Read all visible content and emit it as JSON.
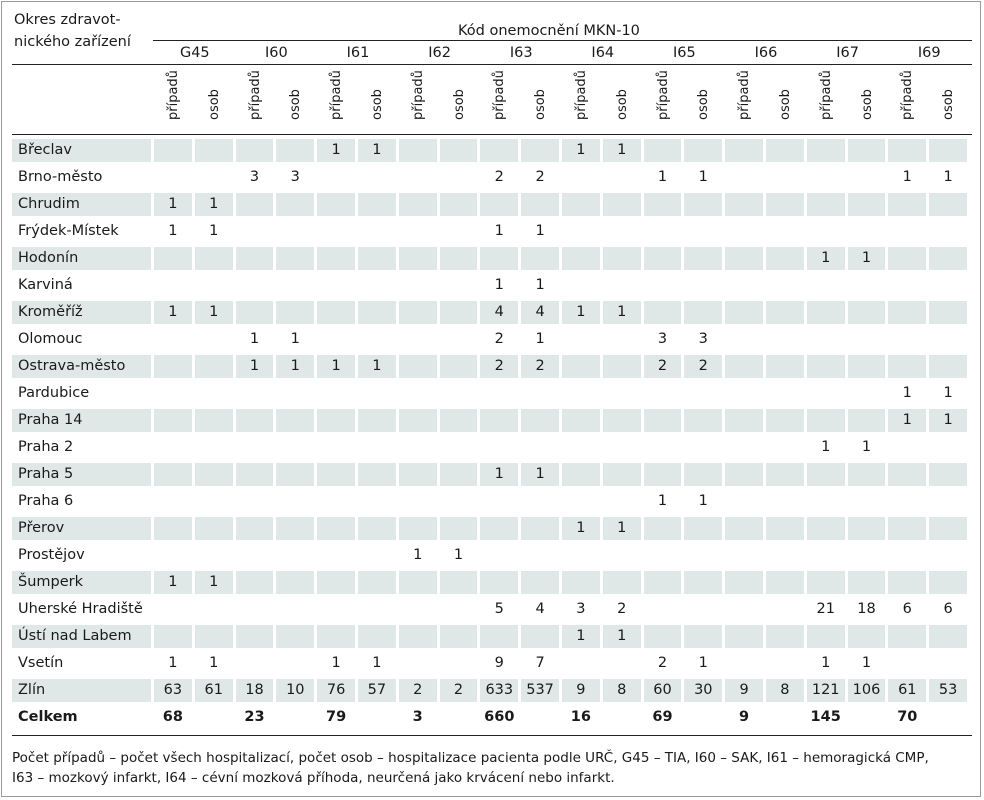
{
  "header": {
    "row_label_line1": "Okres zdravot-",
    "row_label_line2": "nického zařízení",
    "group_title": "Kód onemocnění MKN-10",
    "codes": [
      "G45",
      "I60",
      "I61",
      "I62",
      "I63",
      "I64",
      "I65",
      "I66",
      "I67",
      "I69"
    ],
    "sub_cases": "případů",
    "sub_persons": "osob"
  },
  "rows": [
    {
      "name": "Břeclav",
      "cells": [
        "",
        "",
        "",
        "",
        "1",
        "1",
        "",
        "",
        "",
        "",
        "1",
        "1",
        "",
        "",
        "",
        "",
        "",
        "",
        "",
        ""
      ]
    },
    {
      "name": "Brno-město",
      "cells": [
        "",
        "",
        "3",
        "3",
        "",
        "",
        "",
        "",
        "2",
        "2",
        "",
        "",
        "1",
        "1",
        "",
        "",
        "",
        "",
        "1",
        "1"
      ]
    },
    {
      "name": "Chrudim",
      "cells": [
        "1",
        "1",
        "",
        "",
        "",
        "",
        "",
        "",
        "",
        "",
        "",
        "",
        "",
        "",
        "",
        "",
        "",
        "",
        "",
        ""
      ]
    },
    {
      "name": "Frýdek-Místek",
      "cells": [
        "1",
        "1",
        "",
        "",
        "",
        "",
        "",
        "",
        "1",
        "1",
        "",
        "",
        "",
        "",
        "",
        "",
        "",
        "",
        "",
        ""
      ]
    },
    {
      "name": "Hodonín",
      "cells": [
        "",
        "",
        "",
        "",
        "",
        "",
        "",
        "",
        "",
        "",
        "",
        "",
        "",
        "",
        "",
        "",
        "1",
        "1",
        "",
        ""
      ]
    },
    {
      "name": "Karviná",
      "cells": [
        "",
        "",
        "",
        "",
        "",
        "",
        "",
        "",
        "1",
        "1",
        "",
        "",
        "",
        "",
        "",
        "",
        "",
        "",
        "",
        ""
      ]
    },
    {
      "name": "Kroměříž",
      "cells": [
        "1",
        "1",
        "",
        "",
        "",
        "",
        "",
        "",
        "4",
        "4",
        "1",
        "1",
        "",
        "",
        "",
        "",
        "",
        "",
        "",
        ""
      ]
    },
    {
      "name": "Olomouc",
      "cells": [
        "",
        "",
        "1",
        "1",
        "",
        "",
        "",
        "",
        "2",
        "1",
        "",
        "",
        "3",
        "3",
        "",
        "",
        "",
        "",
        "",
        ""
      ]
    },
    {
      "name": "Ostrava-město",
      "cells": [
        "",
        "",
        "1",
        "1",
        "1",
        "1",
        "",
        "",
        "2",
        "2",
        "",
        "",
        "2",
        "2",
        "",
        "",
        "",
        "",
        "",
        ""
      ]
    },
    {
      "name": "Pardubice",
      "cells": [
        "",
        "",
        "",
        "",
        "",
        "",
        "",
        "",
        "",
        "",
        "",
        "",
        "",
        "",
        "",
        "",
        "",
        "",
        "1",
        "1"
      ]
    },
    {
      "name": "Praha 14",
      "cells": [
        "",
        "",
        "",
        "",
        "",
        "",
        "",
        "",
        "",
        "",
        "",
        "",
        "",
        "",
        "",
        "",
        "",
        "",
        "1",
        "1"
      ]
    },
    {
      "name": "Praha 2",
      "cells": [
        "",
        "",
        "",
        "",
        "",
        "",
        "",
        "",
        "",
        "",
        "",
        "",
        "",
        "",
        "",
        "",
        "1",
        "1",
        "",
        ""
      ]
    },
    {
      "name": "Praha 5",
      "cells": [
        "",
        "",
        "",
        "",
        "",
        "",
        "",
        "",
        "1",
        "1",
        "",
        "",
        "",
        "",
        "",
        "",
        "",
        "",
        "",
        ""
      ]
    },
    {
      "name": "Praha 6",
      "cells": [
        "",
        "",
        "",
        "",
        "",
        "",
        "",
        "",
        "",
        "",
        "",
        "",
        "1",
        "1",
        "",
        "",
        "",
        "",
        "",
        ""
      ]
    },
    {
      "name": "Přerov",
      "cells": [
        "",
        "",
        "",
        "",
        "",
        "",
        "",
        "",
        "",
        "",
        "1",
        "1",
        "",
        "",
        "",
        "",
        "",
        "",
        "",
        ""
      ]
    },
    {
      "name": "Prostějov",
      "cells": [
        "",
        "",
        "",
        "",
        "",
        "",
        "1",
        "1",
        "",
        "",
        "",
        "",
        "",
        "",
        "",
        "",
        "",
        "",
        "",
        ""
      ]
    },
    {
      "name": "Šumperk",
      "cells": [
        "1",
        "1",
        "",
        "",
        "",
        "",
        "",
        "",
        "",
        "",
        "",
        "",
        "",
        "",
        "",
        "",
        "",
        "",
        "",
        ""
      ]
    },
    {
      "name": "Uherské Hradiště",
      "cells": [
        "",
        "",
        "",
        "",
        "",
        "",
        "",
        "",
        "5",
        "4",
        "3",
        "2",
        "",
        "",
        "",
        "",
        "21",
        "18",
        "6",
        "6"
      ]
    },
    {
      "name": "Ústí nad Labem",
      "cells": [
        "",
        "",
        "",
        "",
        "",
        "",
        "",
        "",
        "",
        "",
        "1",
        "1",
        "",
        "",
        "",
        "",
        "",
        "",
        "",
        ""
      ]
    },
    {
      "name": "Vsetín",
      "cells": [
        "1",
        "1",
        "",
        "",
        "1",
        "1",
        "",
        "",
        "9",
        "7",
        "",
        "",
        "2",
        "1",
        "",
        "",
        "1",
        "1",
        "",
        ""
      ]
    },
    {
      "name": "Zlín",
      "cells": [
        "63",
        "61",
        "18",
        "10",
        "76",
        "57",
        "2",
        "2",
        "633",
        "537",
        "9",
        "8",
        "60",
        "30",
        "9",
        "8",
        "121",
        "106",
        "61",
        "53"
      ]
    }
  ],
  "total": {
    "label": "Celkem",
    "values": [
      "68",
      "23",
      "79",
      "3",
      "660",
      "16",
      "69",
      "9",
      "145",
      "70"
    ]
  },
  "footnote": {
    "line1": "Počet případů – počet všech hospitalizací, počet osob – hospitalizace pacienta podle URČ, G45 – TIA, I60 – SAK, I61 – hemoragická CMP,",
    "line2": "I63 – mozkový infarkt, I64 – cévní mozková příhoda, neurčená jako krvácení nebo infarkt."
  },
  "colors": {
    "band": "#dfe8e6",
    "rule": "#222222",
    "frame": "#9a9a9a"
  }
}
